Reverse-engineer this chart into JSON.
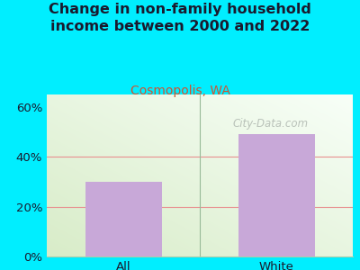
{
  "categories": [
    "All",
    "White"
  ],
  "values": [
    30,
    49
  ],
  "bar_color": "#c8a8d8",
  "title": "Change in non-family household\nincome between 2000 and 2022",
  "subtitle": "Cosmopolis, WA",
  "title_color": "#1a1a2e",
  "subtitle_color": "#cc5533",
  "ylim": [
    0,
    65
  ],
  "yticks": [
    0,
    20,
    40,
    60
  ],
  "ytick_labels": [
    "0%",
    "20%",
    "40%",
    "60%"
  ],
  "background_outer": "#00eeff",
  "bg_color_topleft": "#d8ecc8",
  "bg_color_topright": "#f0f8ee",
  "bg_color_bottom": "#e8f5e0",
  "grid_color": "#e89090",
  "watermark": "City-Data.com",
  "title_fontsize": 11.5,
  "subtitle_fontsize": 10,
  "tick_fontsize": 9.5
}
